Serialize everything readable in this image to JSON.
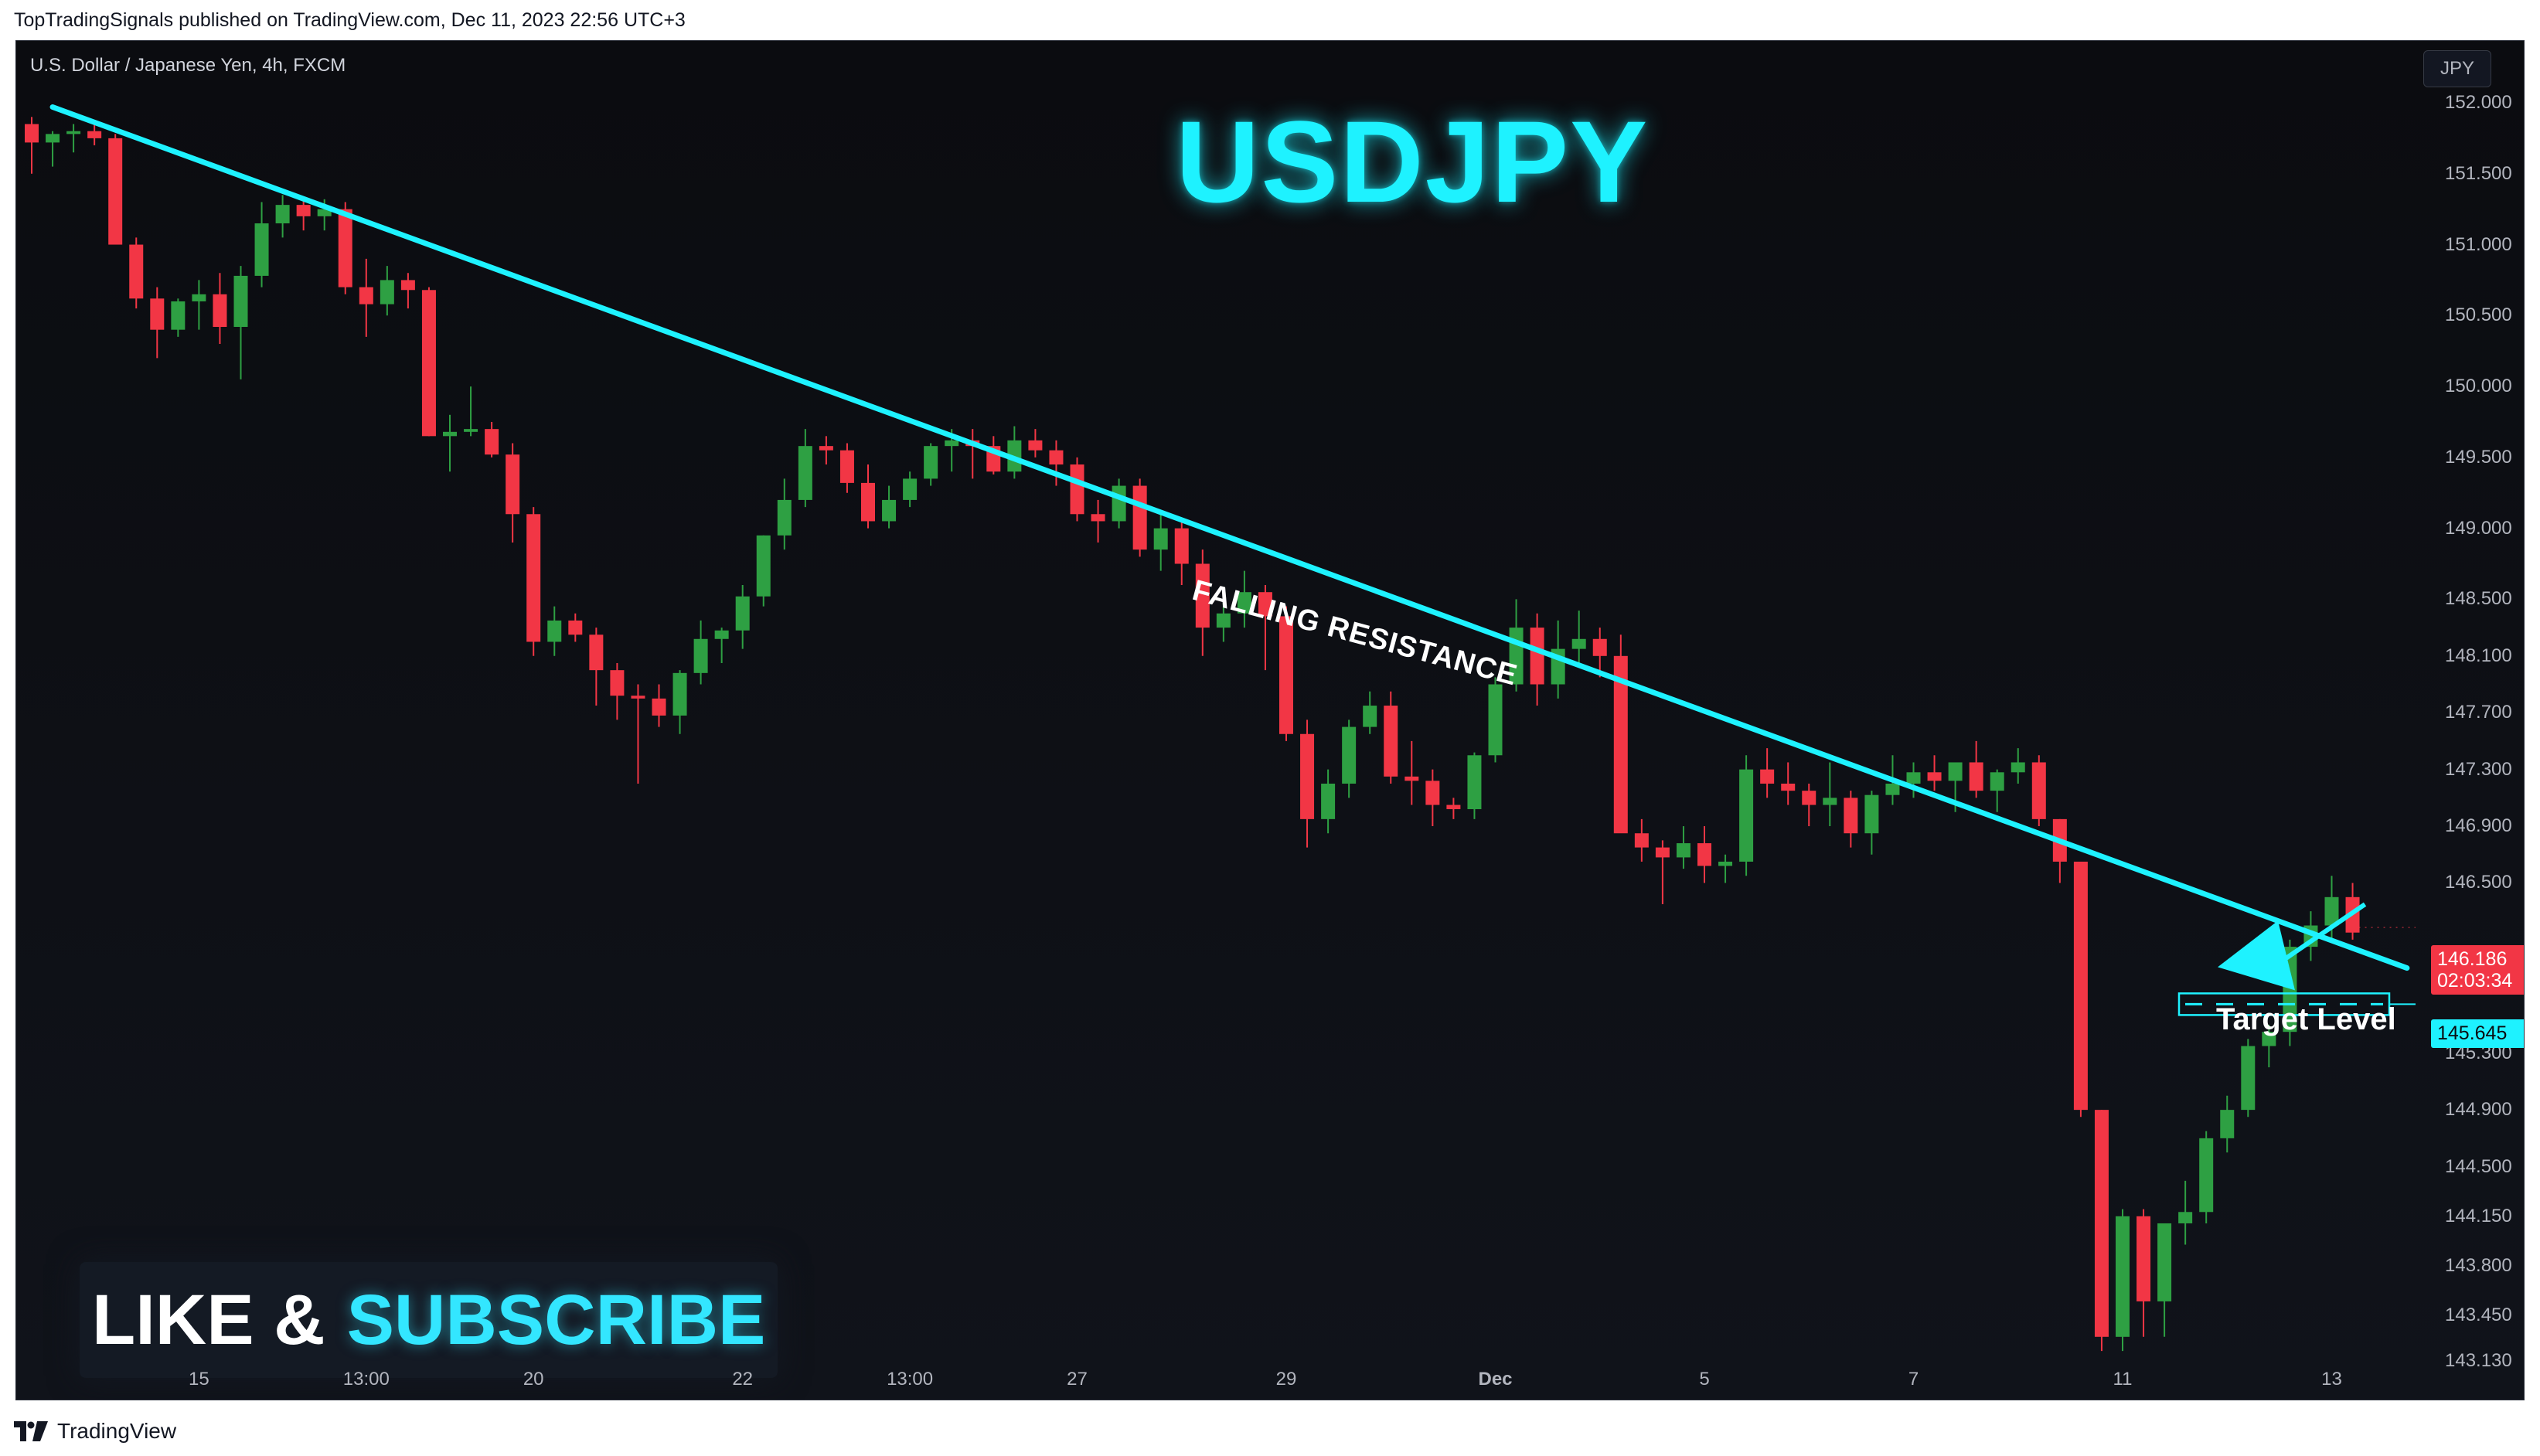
{
  "published_line": "TopTradingSignals published on TradingView.com, Dec 11, 2023 22:56 UTC+3",
  "symbol_line": "U.S. Dollar / Japanese Yen, 4h, FXCM",
  "currency_label": "JPY",
  "headline": "USDJPY",
  "cta": {
    "like": "LIKE &",
    "subscribe": "SUBSCRIBE"
  },
  "annotations": {
    "resistance": "FALLING RESISTANCE",
    "target": "Target Level"
  },
  "price_tags": {
    "last_price": "146.186",
    "countdown": "02:03:34",
    "target_price": "145.645"
  },
  "footer_brand": "TradingView",
  "colors": {
    "up": "#2ea043",
    "down": "#f23645",
    "accent": "#1ef2ff"
  },
  "chart_data": {
    "type": "candlestick",
    "title": "U.S. Dollar / Japanese Yen, 4h, FXCM",
    "ylabel": "JPY",
    "ylim": [
      143.13,
      152.0
    ],
    "y_ticks": [
      "152.000",
      "151.500",
      "151.000",
      "150.500",
      "150.000",
      "149.500",
      "149.000",
      "148.500",
      "148.100",
      "147.700",
      "147.300",
      "146.900",
      "146.500",
      "145.300",
      "144.900",
      "144.500",
      "144.150",
      "143.800",
      "143.450",
      "143.130"
    ],
    "x_ticks": [
      {
        "label": "15",
        "bar": 8
      },
      {
        "label": "13:00",
        "bar": 16
      },
      {
        "label": "20",
        "bar": 24
      },
      {
        "label": "22",
        "bar": 34
      },
      {
        "label": "13:00",
        "bar": 42
      },
      {
        "label": "27",
        "bar": 50
      },
      {
        "label": "29",
        "bar": 60
      },
      {
        "label": "Dec",
        "bar": 70
      },
      {
        "label": "5",
        "bar": 80
      },
      {
        "label": "7",
        "bar": 90
      },
      {
        "label": "11",
        "bar": 100
      },
      {
        "label": "13",
        "bar": 110
      }
    ],
    "candles": [
      [
        151.85,
        151.9,
        151.5,
        151.72
      ],
      [
        151.72,
        151.8,
        151.55,
        151.78
      ],
      [
        151.78,
        151.85,
        151.65,
        151.8
      ],
      [
        151.8,
        151.85,
        151.7,
        151.75
      ],
      [
        151.75,
        151.78,
        151.0,
        151.0
      ],
      [
        151.0,
        151.05,
        150.55,
        150.62
      ],
      [
        150.62,
        150.7,
        150.2,
        150.4
      ],
      [
        150.4,
        150.62,
        150.35,
        150.6
      ],
      [
        150.6,
        150.75,
        150.4,
        150.65
      ],
      [
        150.65,
        150.8,
        150.3,
        150.42
      ],
      [
        150.42,
        150.85,
        150.05,
        150.78
      ],
      [
        150.78,
        151.3,
        150.7,
        151.15
      ],
      [
        151.15,
        151.35,
        151.05,
        151.28
      ],
      [
        151.28,
        151.32,
        151.1,
        151.2
      ],
      [
        151.2,
        151.32,
        151.1,
        151.25
      ],
      [
        151.25,
        151.3,
        150.65,
        150.7
      ],
      [
        150.7,
        150.9,
        150.35,
        150.58
      ],
      [
        150.58,
        150.85,
        150.5,
        150.75
      ],
      [
        150.75,
        150.8,
        150.55,
        150.68
      ],
      [
        150.68,
        150.7,
        149.65,
        149.65
      ],
      [
        149.65,
        149.8,
        149.4,
        149.68
      ],
      [
        149.68,
        150.0,
        149.65,
        149.7
      ],
      [
        149.7,
        149.75,
        149.5,
        149.52
      ],
      [
        149.52,
        149.6,
        148.9,
        149.1
      ],
      [
        149.1,
        149.15,
        148.1,
        148.2
      ],
      [
        148.2,
        148.45,
        148.1,
        148.35
      ],
      [
        148.35,
        148.4,
        148.2,
        148.25
      ],
      [
        148.25,
        148.3,
        147.75,
        148.0
      ],
      [
        148.0,
        148.05,
        147.65,
        147.82
      ],
      [
        147.82,
        147.9,
        147.2,
        147.8
      ],
      [
        147.8,
        147.9,
        147.6,
        147.68
      ],
      [
        147.68,
        148.0,
        147.55,
        147.98
      ],
      [
        147.98,
        148.35,
        147.9,
        148.22
      ],
      [
        148.22,
        148.3,
        148.05,
        148.28
      ],
      [
        148.28,
        148.6,
        148.15,
        148.52
      ],
      [
        148.52,
        148.95,
        148.45,
        148.95
      ],
      [
        148.95,
        149.35,
        148.85,
        149.2
      ],
      [
        149.2,
        149.7,
        149.15,
        149.58
      ],
      [
        149.58,
        149.65,
        149.45,
        149.55
      ],
      [
        149.55,
        149.6,
        149.25,
        149.32
      ],
      [
        149.32,
        149.45,
        149.0,
        149.05
      ],
      [
        149.05,
        149.3,
        149.0,
        149.2
      ],
      [
        149.2,
        149.4,
        149.15,
        149.35
      ],
      [
        149.35,
        149.6,
        149.3,
        149.58
      ],
      [
        149.58,
        149.7,
        149.4,
        149.62
      ],
      [
        149.62,
        149.7,
        149.35,
        149.58
      ],
      [
        149.58,
        149.65,
        149.38,
        149.4
      ],
      [
        149.4,
        149.72,
        149.35,
        149.62
      ],
      [
        149.62,
        149.7,
        149.5,
        149.55
      ],
      [
        149.55,
        149.62,
        149.3,
        149.45
      ],
      [
        149.45,
        149.5,
        149.05,
        149.1
      ],
      [
        149.1,
        149.2,
        148.9,
        149.05
      ],
      [
        149.05,
        149.35,
        149.0,
        149.3
      ],
      [
        149.3,
        149.35,
        148.8,
        148.85
      ],
      [
        148.85,
        149.1,
        148.7,
        149.0
      ],
      [
        149.0,
        149.05,
        148.6,
        148.75
      ],
      [
        148.75,
        148.85,
        148.1,
        148.3
      ],
      [
        148.3,
        148.55,
        148.2,
        148.4
      ],
      [
        148.4,
        148.7,
        148.3,
        148.55
      ],
      [
        148.55,
        148.6,
        148.0,
        148.38
      ],
      [
        148.38,
        148.45,
        147.5,
        147.55
      ],
      [
        147.55,
        147.65,
        146.75,
        146.95
      ],
      [
        146.95,
        147.3,
        146.85,
        147.2
      ],
      [
        147.2,
        147.65,
        147.1,
        147.6
      ],
      [
        147.6,
        147.85,
        147.55,
        147.75
      ],
      [
        147.75,
        147.85,
        147.2,
        147.25
      ],
      [
        147.25,
        147.5,
        147.05,
        147.22
      ],
      [
        147.22,
        147.3,
        146.9,
        147.05
      ],
      [
        147.05,
        147.1,
        146.95,
        147.02
      ],
      [
        147.02,
        147.42,
        146.95,
        147.4
      ],
      [
        147.4,
        147.95,
        147.35,
        147.9
      ],
      [
        147.9,
        148.5,
        147.85,
        148.3
      ],
      [
        148.3,
        148.4,
        147.75,
        147.9
      ],
      [
        147.9,
        148.35,
        147.8,
        148.15
      ],
      [
        148.15,
        148.42,
        148.05,
        148.22
      ],
      [
        148.22,
        148.3,
        147.95,
        148.1
      ],
      [
        148.1,
        148.25,
        146.9,
        146.85
      ],
      [
        146.85,
        146.95,
        146.65,
        146.75
      ],
      [
        146.75,
        146.8,
        146.35,
        146.68
      ],
      [
        146.68,
        146.9,
        146.6,
        146.78
      ],
      [
        146.78,
        146.9,
        146.5,
        146.62
      ],
      [
        146.62,
        146.7,
        146.5,
        146.65
      ],
      [
        146.65,
        147.4,
        146.55,
        147.3
      ],
      [
        147.3,
        147.45,
        147.1,
        147.2
      ],
      [
        147.2,
        147.35,
        147.05,
        147.15
      ],
      [
        147.15,
        147.2,
        146.9,
        147.05
      ],
      [
        147.05,
        147.35,
        146.9,
        147.1
      ],
      [
        147.1,
        147.15,
        146.75,
        146.85
      ],
      [
        146.85,
        147.15,
        146.7,
        147.12
      ],
      [
        147.12,
        147.4,
        147.05,
        147.2
      ],
      [
        147.2,
        147.35,
        147.1,
        147.28
      ],
      [
        147.28,
        147.4,
        147.15,
        147.22
      ],
      [
        147.22,
        147.35,
        147.0,
        147.35
      ],
      [
        147.35,
        147.5,
        147.1,
        147.15
      ],
      [
        147.15,
        147.3,
        147.0,
        147.28
      ],
      [
        147.28,
        147.45,
        147.2,
        147.35
      ],
      [
        147.35,
        147.4,
        146.9,
        146.95
      ],
      [
        146.95,
        146.95,
        146.5,
        146.65
      ],
      [
        146.65,
        146.65,
        144.85,
        144.9
      ],
      [
        144.9,
        144.9,
        143.2,
        143.3
      ],
      [
        143.3,
        144.2,
        143.2,
        144.15
      ],
      [
        144.15,
        144.2,
        143.3,
        143.55
      ],
      [
        143.55,
        144.1,
        143.3,
        144.1
      ],
      [
        144.1,
        144.4,
        143.95,
        144.18
      ],
      [
        144.18,
        144.75,
        144.1,
        144.7
      ],
      [
        144.7,
        145.0,
        144.6,
        144.9
      ],
      [
        144.9,
        145.4,
        144.85,
        145.35
      ],
      [
        145.35,
        145.5,
        145.2,
        145.45
      ],
      [
        145.45,
        146.1,
        145.35,
        146.05
      ],
      [
        146.05,
        146.3,
        145.95,
        146.2
      ],
      [
        146.2,
        146.55,
        146.1,
        146.4
      ],
      [
        146.4,
        146.5,
        146.1,
        146.15
      ]
    ],
    "trendline": {
      "name": "FALLING RESISTANCE",
      "start": {
        "bar": 1,
        "price": 151.97
      },
      "end": {
        "bar": 113.6,
        "price": 145.9
      }
    },
    "target_level": 145.645,
    "last_price": 146.186
  }
}
